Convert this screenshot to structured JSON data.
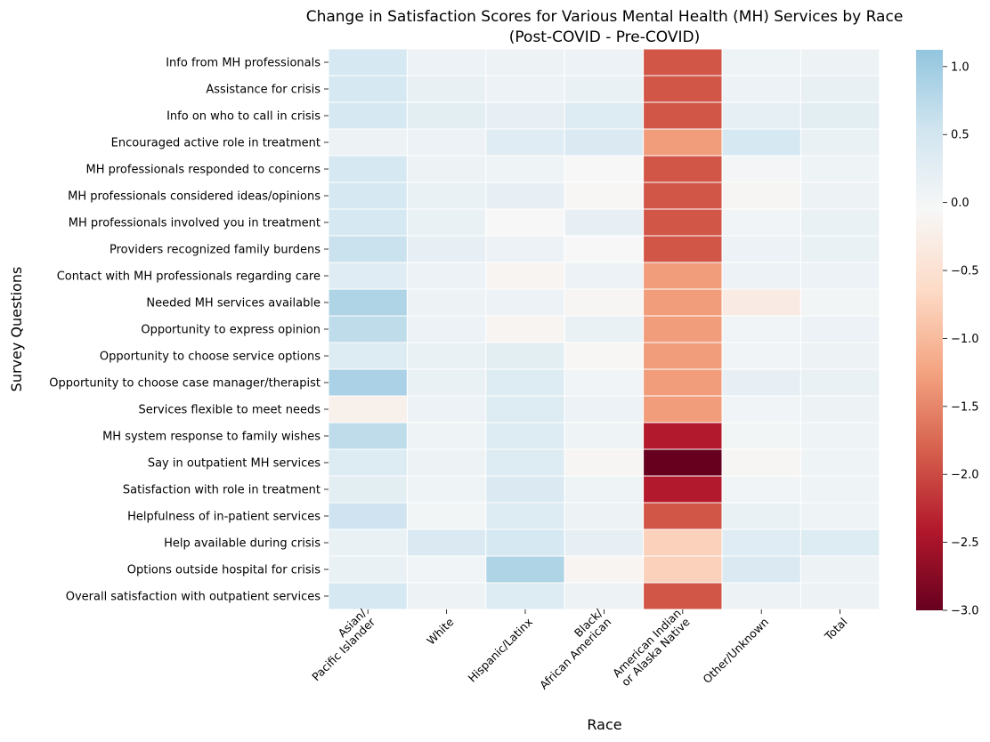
{
  "chart_data": {
    "type": "heatmap",
    "title": "Change in Satisfaction Scores for Various Mental Health (MH) Services by Race",
    "subtitle": "(Post-COVID - Pre-COVID)",
    "xlabel": "Race",
    "ylabel": "Survey Questions",
    "columns": [
      [
        "Asian/",
        "Pacific Islander"
      ],
      [
        "White"
      ],
      [
        "Hispanic/Latinx"
      ],
      [
        "Black/",
        "African American"
      ],
      [
        "American Indian",
        "or Alaska Native"
      ],
      [
        "Other/Unknown"
      ],
      [
        "Total"
      ]
    ],
    "rows": [
      "Info from MH professionals",
      "Assistance for crisis",
      "Info on who to call in crisis",
      "Encouraged active role in treatment",
      "MH professionals responded to concerns",
      "MH professionals considered ideas/opinions",
      "MH professionals involved you in treatment",
      "Providers recognized family burdens",
      "Contact with MH professionals regarding care",
      "Needed MH services available",
      "Opportunity to express opinion",
      "Opportunity to choose service options",
      "Opportunity to choose case manager/therapist",
      "Services flexible to meet needs",
      "MH system response to family wishes",
      "Say in outpatient MH services",
      "Satisfaction with role in treatment",
      "Helpfulness of in-patient services",
      "Help available during crisis",
      "Options outside hospital for crisis",
      "Overall satisfaction with outpatient services"
    ],
    "values": [
      [
        0.45,
        0.12,
        0.1,
        0.12,
        -1.9,
        0.08,
        0.1
      ],
      [
        0.45,
        0.18,
        0.12,
        0.15,
        -1.9,
        0.12,
        0.18
      ],
      [
        0.45,
        0.25,
        0.2,
        0.35,
        -1.9,
        0.22,
        0.25
      ],
      [
        0.1,
        0.12,
        0.3,
        0.4,
        -1.3,
        0.45,
        0.15
      ],
      [
        0.45,
        0.1,
        0.08,
        -0.05,
        -1.9,
        0.0,
        0.08
      ],
      [
        0.45,
        0.15,
        0.2,
        -0.08,
        -1.9,
        -0.1,
        0.1
      ],
      [
        0.45,
        0.15,
        -0.05,
        0.2,
        -1.9,
        0.05,
        0.15
      ],
      [
        0.6,
        0.2,
        0.12,
        -0.05,
        -1.9,
        0.12,
        0.15
      ],
      [
        0.3,
        0.12,
        -0.12,
        0.12,
        -1.3,
        0.12,
        0.12
      ],
      [
        0.85,
        0.1,
        0.12,
        -0.1,
        -1.3,
        -0.3,
        0.02
      ],
      [
        0.7,
        0.12,
        -0.12,
        0.15,
        -1.3,
        0.05,
        0.12
      ],
      [
        0.35,
        0.15,
        0.25,
        -0.08,
        -1.3,
        0.05,
        0.1
      ],
      [
        0.9,
        0.15,
        0.35,
        0.05,
        -1.3,
        0.2,
        0.15
      ],
      [
        -0.2,
        0.12,
        0.35,
        0.12,
        -1.3,
        0.05,
        0.1
      ],
      [
        0.7,
        0.08,
        0.35,
        0.08,
        -2.4,
        0.02,
        0.08
      ],
      [
        0.35,
        0.1,
        0.35,
        -0.1,
        -3.0,
        -0.1,
        0.08
      ],
      [
        0.25,
        0.08,
        0.4,
        0.08,
        -2.4,
        0.05,
        0.08
      ],
      [
        0.55,
        0.02,
        0.35,
        0.1,
        -1.9,
        0.15,
        0.08
      ],
      [
        0.15,
        0.4,
        0.45,
        0.2,
        -0.75,
        0.3,
        0.35
      ],
      [
        0.15,
        0.05,
        0.85,
        -0.12,
        -0.75,
        0.4,
        0.1
      ],
      [
        0.45,
        0.1,
        0.35,
        0.1,
        -1.9,
        0.1,
        0.1
      ]
    ],
    "colorscale": {
      "vmin": -3.0,
      "vmax": 1.1233,
      "ticks": [
        "1.0",
        "0.5",
        "0.0",
        "−0.5",
        "−1.0",
        "−1.5",
        "−2.0",
        "−2.5",
        "−3.0"
      ],
      "tick_values": [
        1.0,
        0.5,
        0.0,
        -0.5,
        -1.0,
        -1.5,
        -2.0,
        -2.5,
        -3.0
      ],
      "map": "RdBu",
      "stops": [
        "#67001f",
        "#b2182b",
        "#d6604d",
        "#f4a582",
        "#fddbc7",
        "#f7f7f7",
        "#d1e5f0",
        "#92c5de"
      ]
    }
  }
}
